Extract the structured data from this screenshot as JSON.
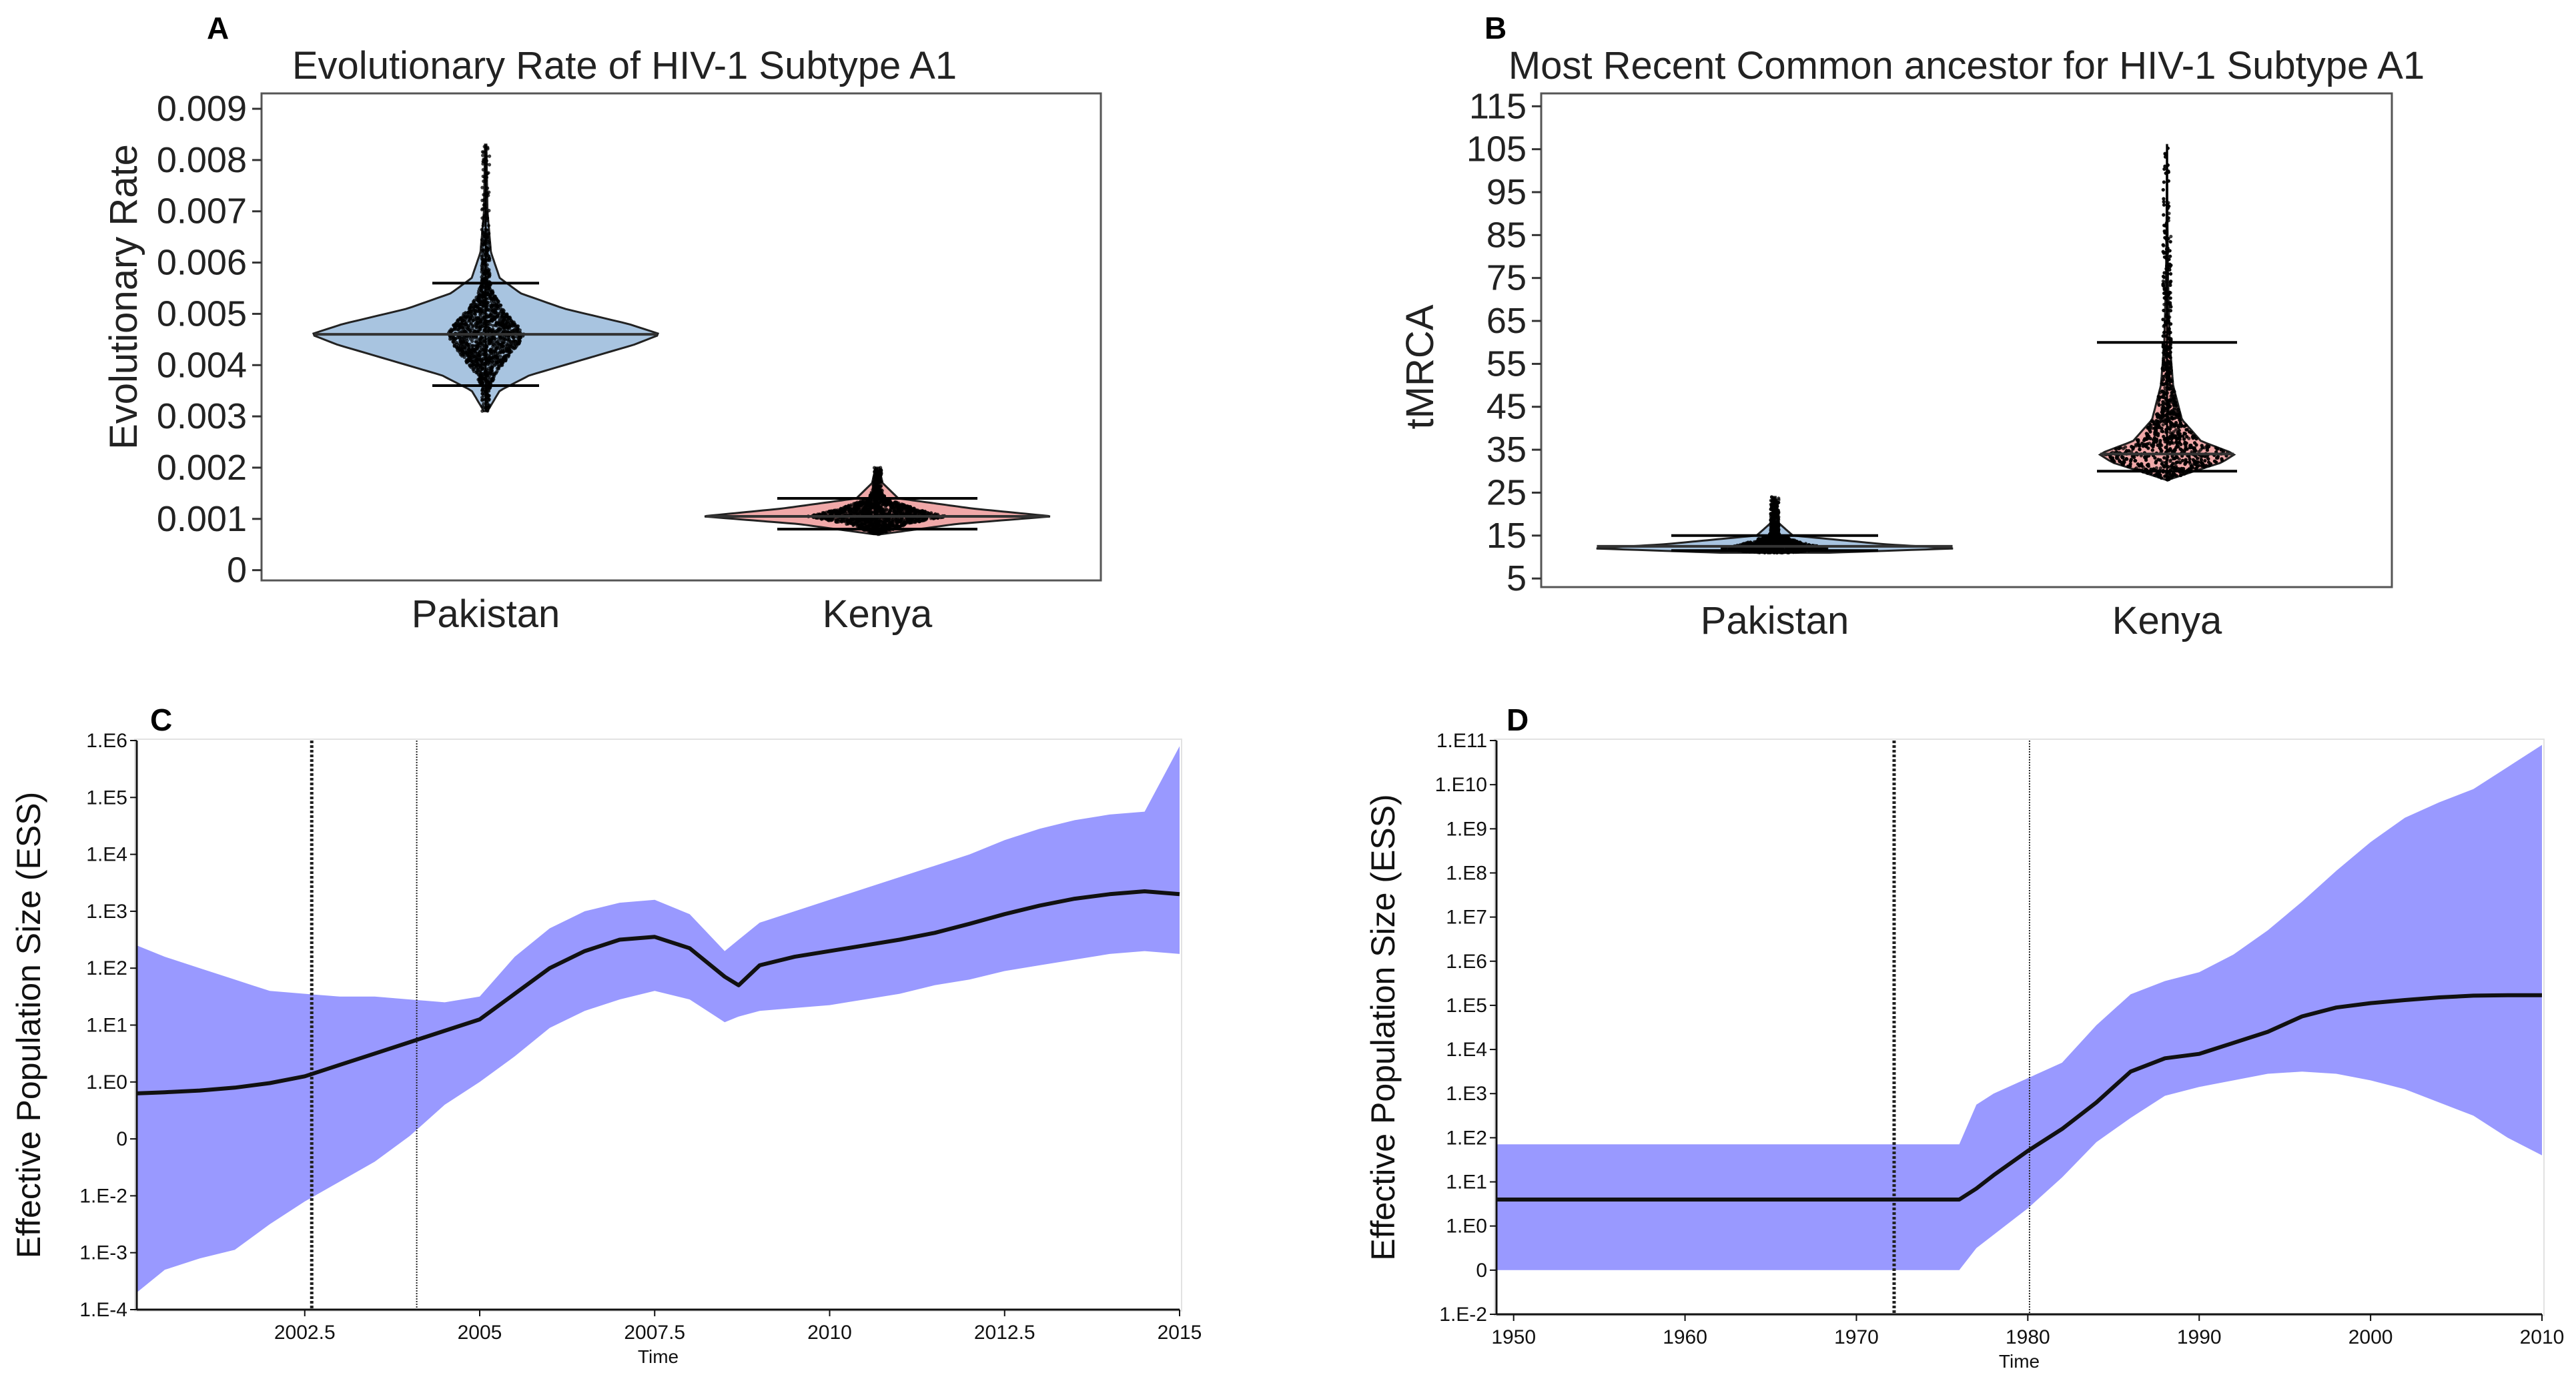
{
  "figure": {
    "background": "#ffffff"
  },
  "chart_data": [
    {
      "panel": "A",
      "type": "violin",
      "title": "Evolutionary  Rate of HIV-1 Subtype  A1",
      "xlabel": "",
      "ylabel": "Evolutionary Rate",
      "categories": [
        "Pakistan",
        "Kenya"
      ],
      "ylim": [
        -0.0002,
        0.0093
      ],
      "yticks": [
        0,
        0.001,
        0.002,
        0.003,
        0.004,
        0.005,
        0.006,
        0.007,
        0.008,
        0.009
      ],
      "ytick_labels": [
        "0",
        "0.001",
        "0.002",
        "0.003",
        "0.004",
        "0.005",
        "0.006",
        "0.007",
        "0.008",
        "0.009"
      ],
      "series": [
        {
          "name": "Pakistan",
          "color": "#a8c4e0",
          "min": 0.0031,
          "max": 0.0083,
          "median": 0.0046,
          "lower": 0.0036,
          "upper": 0.0056,
          "profile": [
            [
              0.0031,
              0.01
            ],
            [
              0.0035,
              0.08
            ],
            [
              0.0038,
              0.25
            ],
            [
              0.0041,
              0.55
            ],
            [
              0.0044,
              0.85
            ],
            [
              0.0046,
              1.0
            ],
            [
              0.0048,
              0.82
            ],
            [
              0.0051,
              0.45
            ],
            [
              0.0054,
              0.2
            ],
            [
              0.0057,
              0.08
            ],
            [
              0.0062,
              0.03
            ],
            [
              0.007,
              0.01
            ],
            [
              0.0083,
              0.004
            ]
          ]
        },
        {
          "name": "Kenya",
          "color": "#f0a8a8",
          "min": 0.0007,
          "max": 0.002,
          "median": 0.00105,
          "lower": 0.0008,
          "upper": 0.0014,
          "profile": [
            [
              0.0007,
              0.02
            ],
            [
              0.0009,
              0.45
            ],
            [
              0.00105,
              1.0
            ],
            [
              0.0012,
              0.55
            ],
            [
              0.0014,
              0.12
            ],
            [
              0.0017,
              0.03
            ],
            [
              0.002,
              0.01
            ]
          ]
        }
      ]
    },
    {
      "panel": "B",
      "type": "violin",
      "title": "Most Recent Common ancestor for HIV-1 Subtype  A1",
      "xlabel": "",
      "ylabel": "tMRCA",
      "categories": [
        "Pakistan",
        "Kenya"
      ],
      "ylim": [
        3,
        118
      ],
      "yticks": [
        5,
        15,
        25,
        35,
        45,
        55,
        65,
        75,
        85,
        95,
        105,
        115
      ],
      "ytick_labels": [
        "5",
        "15",
        "25",
        "35",
        "45",
        "55",
        "65",
        "75",
        "85",
        "95",
        "105",
        "115"
      ],
      "series": [
        {
          "name": "Pakistan",
          "color": "#a8c4e0",
          "min": 11,
          "max": 24,
          "median": 12.5,
          "lower": 11.5,
          "upper": 15,
          "profile": [
            [
              11,
              0.3
            ],
            [
              12,
              1.0
            ],
            [
              13,
              0.6
            ],
            [
              15,
              0.1
            ],
            [
              18,
              0.02
            ],
            [
              24,
              0.005
            ]
          ]
        },
        {
          "name": "Kenya",
          "color": "#f0a8a8",
          "min": 28,
          "max": 106,
          "median": 34,
          "lower": 30,
          "upper": 60,
          "profile": [
            [
              28,
              0.02
            ],
            [
              30,
              0.4
            ],
            [
              32,
              0.8
            ],
            [
              34,
              1.0
            ],
            [
              37,
              0.5
            ],
            [
              42,
              0.22
            ],
            [
              50,
              0.09
            ],
            [
              60,
              0.04
            ],
            [
              75,
              0.015
            ],
            [
              90,
              0.006
            ],
            [
              106,
              0.002
            ]
          ]
        }
      ]
    },
    {
      "panel": "C",
      "type": "area",
      "title": "",
      "xlabel": "Time",
      "ylabel": "Effective Population Size (ESS)",
      "xlim": [
        2000.1,
        2015
      ],
      "xticks": [
        2002.5,
        2005,
        2007.5,
        2010,
        2012.5,
        2015
      ],
      "xtick_labels": [
        "2002.5",
        "2005",
        "2007.5",
        "2010",
        "2012.5",
        "2015"
      ],
      "ylim": [
        -4,
        6
      ],
      "yticks": [
        -4,
        -3,
        -2,
        -1,
        0,
        1,
        2,
        3,
        4,
        5,
        6
      ],
      "ytick_labels": [
        "1.E-4",
        "1.E-3",
        "1.E-2",
        "0",
        "1.E0",
        "1.E1",
        "1.E2",
        "1.E3",
        "1.E4",
        "1.E5",
        "1.E6"
      ],
      "vlines": [
        2002.6,
        2004.1
      ],
      "band_color": "#9999ff",
      "line_color": "#111111",
      "x": [
        2000.1,
        2000.5,
        2001.0,
        2001.5,
        2002.0,
        2002.5,
        2003.0,
        2003.5,
        2004.0,
        2004.5,
        2005.0,
        2005.5,
        2006.0,
        2006.5,
        2007.0,
        2007.5,
        2008.0,
        2008.5,
        2008.7,
        2009.0,
        2009.5,
        2010.0,
        2010.5,
        2011.0,
        2011.5,
        2012.0,
        2012.5,
        2013.0,
        2013.5,
        2014.0,
        2014.5,
        2015.0
      ],
      "median": [
        -0.2,
        -0.18,
        -0.15,
        -0.1,
        -0.02,
        0.1,
        0.3,
        0.5,
        0.7,
        0.9,
        1.1,
        1.55,
        2.0,
        2.3,
        2.5,
        2.55,
        2.35,
        1.85,
        1.7,
        2.05,
        2.2,
        2.3,
        2.4,
        2.5,
        2.62,
        2.78,
        2.95,
        3.1,
        3.22,
        3.3,
        3.35,
        3.3
      ],
      "lower": [
        -3.7,
        -3.3,
        -3.1,
        -2.95,
        -2.5,
        -2.1,
        -1.75,
        -1.4,
        -0.95,
        -0.4,
        0.0,
        0.45,
        0.95,
        1.25,
        1.45,
        1.6,
        1.45,
        1.05,
        1.15,
        1.25,
        1.3,
        1.35,
        1.45,
        1.55,
        1.7,
        1.8,
        1.95,
        2.05,
        2.15,
        2.25,
        2.3,
        2.25
      ],
      "upper": [
        2.4,
        2.2,
        2.0,
        1.8,
        1.6,
        1.55,
        1.5,
        1.5,
        1.45,
        1.4,
        1.5,
        2.2,
        2.7,
        3.0,
        3.15,
        3.2,
        2.95,
        2.3,
        2.5,
        2.8,
        3.0,
        3.2,
        3.4,
        3.6,
        3.8,
        4.0,
        4.25,
        4.45,
        4.6,
        4.7,
        4.75,
        5.9
      ]
    },
    {
      "panel": "D",
      "type": "area",
      "title": "",
      "xlabel": "Time",
      "ylabel": "Effective Population Size (ESS)",
      "xlim": [
        1949,
        2010
      ],
      "xticks": [
        1950,
        1960,
        1970,
        1980,
        1990,
        2000,
        2010
      ],
      "xtick_labels": [
        "1950",
        "1960",
        "1970",
        "1980",
        "1990",
        "2000",
        "2010"
      ],
      "ylim": [
        -2,
        11
      ],
      "yticks": [
        -2,
        -1,
        0,
        1,
        2,
        3,
        4,
        5,
        6,
        7,
        8,
        9,
        10,
        11
      ],
      "ytick_labels": [
        "1.E-2",
        "0",
        "1.E0",
        "1.E1",
        "1.E2",
        "1.E3",
        "1.E4",
        "1.E5",
        "1.E6",
        "1.E7",
        "1.E8",
        "1.E9",
        "1.E10",
        "1.E11"
      ],
      "vlines": [
        1972.2,
        1980.1
      ],
      "band_color": "#9999ff",
      "line_color": "#111111",
      "x": [
        1949,
        1960,
        1970,
        1975,
        1976,
        1977,
        1978,
        1980,
        1982,
        1984,
        1986,
        1988,
        1990,
        1992,
        1994,
        1996,
        1998,
        2000,
        2002,
        2004,
        2006,
        2008,
        2010
      ],
      "median": [
        0.6,
        0.6,
        0.6,
        0.6,
        0.6,
        0.85,
        1.15,
        1.7,
        2.2,
        2.8,
        3.5,
        3.8,
        3.9,
        4.15,
        4.4,
        4.75,
        4.95,
        5.05,
        5.12,
        5.18,
        5.22,
        5.23,
        5.23
      ],
      "lower": [
        -1.0,
        -1.0,
        -1.0,
        -1.0,
        -1.0,
        -0.5,
        -0.2,
        0.4,
        1.1,
        1.9,
        2.45,
        2.95,
        3.15,
        3.3,
        3.45,
        3.5,
        3.45,
        3.3,
        3.1,
        2.8,
        2.5,
        2.0,
        1.6
      ],
      "upper": [
        1.85,
        1.85,
        1.85,
        1.85,
        1.85,
        2.75,
        3.0,
        3.35,
        3.7,
        4.55,
        5.25,
        5.55,
        5.75,
        6.15,
        6.7,
        7.35,
        8.05,
        8.7,
        9.25,
        9.6,
        9.9,
        10.4,
        10.9
      ]
    }
  ]
}
